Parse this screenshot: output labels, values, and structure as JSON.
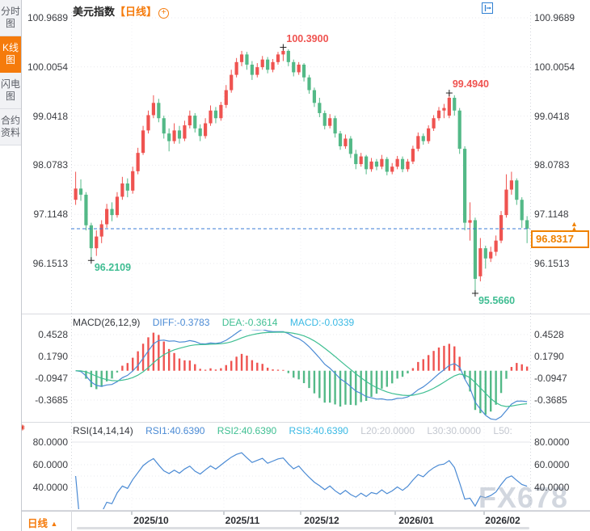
{
  "sidebar": {
    "items": [
      {
        "name": "tab-time-chart",
        "label": "分时图",
        "active": false
      },
      {
        "name": "tab-kline-chart",
        "label": "K线图",
        "active": true
      },
      {
        "name": "tab-lightning-chart",
        "label": "闪电图",
        "active": false
      },
      {
        "name": "tab-contract-info",
        "label": "合约资料",
        "active": false
      }
    ]
  },
  "header": {
    "title": "美元指数",
    "period_tag": "【日线】"
  },
  "toolbar": {
    "icons": [
      "crosshair-pan-icon",
      "zoom-out-icon",
      "zoom-in-icon",
      "reset-view-icon"
    ],
    "active_index": 2
  },
  "chart_data": {
    "type": "candlestick",
    "title": "美元指数 日线",
    "colors": {
      "up": "#ef5350",
      "down": "#53b987",
      "accent": "#f08200",
      "price_line": "#3a7bd5"
    },
    "y_axis_labels": [
      "100.9689",
      "100.0054",
      "99.0418",
      "98.0783",
      "97.1148",
      "96.1513"
    ],
    "x_axis_labels": [
      "2025/10",
      "2025/11",
      "2025/12",
      "2026/01",
      "2026/02"
    ],
    "current_price": "96.8317",
    "annotations": [
      {
        "text": "100.3900",
        "index": 40,
        "price": 100.39,
        "side": "high",
        "color": "up"
      },
      {
        "text": "99.4940",
        "index": 72,
        "price": 99.494,
        "side": "high",
        "color": "up"
      },
      {
        "text": "96.2109",
        "index": 3,
        "price": 96.2109,
        "side": "low",
        "color": "down"
      },
      {
        "text": "95.5660",
        "index": 77,
        "price": 95.566,
        "side": "low",
        "color": "down"
      }
    ],
    "candles": [
      [
        97.4,
        97.95,
        97.3,
        97.62
      ],
      [
        97.62,
        97.8,
        97.38,
        97.5
      ],
      [
        97.5,
        97.55,
        96.8,
        96.9
      ],
      [
        96.9,
        96.95,
        96.2109,
        96.45
      ],
      [
        96.45,
        96.8,
        96.3,
        96.68
      ],
      [
        96.68,
        97.0,
        96.55,
        96.92
      ],
      [
        96.92,
        97.32,
        96.85,
        97.22
      ],
      [
        97.22,
        97.35,
        96.98,
        97.1
      ],
      [
        97.1,
        97.55,
        97.05,
        97.46
      ],
      [
        97.46,
        97.85,
        97.4,
        97.72
      ],
      [
        97.72,
        97.82,
        97.45,
        97.58
      ],
      [
        97.58,
        98.05,
        97.52,
        97.96
      ],
      [
        97.96,
        98.42,
        97.9,
        98.32
      ],
      [
        98.32,
        98.85,
        98.28,
        98.76
      ],
      [
        98.76,
        99.15,
        98.7,
        99.06
      ],
      [
        99.06,
        99.45,
        99.0,
        99.3
      ],
      [
        99.3,
        99.38,
        98.92,
        99.0
      ],
      [
        99.0,
        99.05,
        98.6,
        98.7
      ],
      [
        98.7,
        98.8,
        98.35,
        98.55
      ],
      [
        98.55,
        98.9,
        98.5,
        98.76
      ],
      [
        98.76,
        98.85,
        98.5,
        98.6
      ],
      [
        98.6,
        98.95,
        98.55,
        98.86
      ],
      [
        98.86,
        99.15,
        98.8,
        99.05
      ],
      [
        99.05,
        99.1,
        98.72,
        98.8
      ],
      [
        98.8,
        98.88,
        98.55,
        98.65
      ],
      [
        98.65,
        99.0,
        98.6,
        98.9
      ],
      [
        98.9,
        99.25,
        98.85,
        99.15
      ],
      [
        99.15,
        99.22,
        98.9,
        99.0
      ],
      [
        99.0,
        99.32,
        98.95,
        99.26
      ],
      [
        99.26,
        99.65,
        99.2,
        99.55
      ],
      [
        99.55,
        99.95,
        99.5,
        99.85
      ],
      [
        99.85,
        100.18,
        99.8,
        100.1
      ],
      [
        100.1,
        100.32,
        100.02,
        100.25
      ],
      [
        100.25,
        100.3,
        99.95,
        100.05
      ],
      [
        100.05,
        100.12,
        99.75,
        99.85
      ],
      [
        99.85,
        100.08,
        99.8,
        100.0
      ],
      [
        100.0,
        100.22,
        99.95,
        100.15
      ],
      [
        100.15,
        100.2,
        99.88,
        99.95
      ],
      [
        99.95,
        100.16,
        99.9,
        100.1
      ],
      [
        100.1,
        100.3,
        100.05,
        100.25
      ],
      [
        100.25,
        100.39,
        100.12,
        100.32
      ],
      [
        100.32,
        100.35,
        100.02,
        100.1
      ],
      [
        100.1,
        100.15,
        99.82,
        99.9
      ],
      [
        99.9,
        100.1,
        99.85,
        100.05
      ],
      [
        100.05,
        100.08,
        99.72,
        99.8
      ],
      [
        99.8,
        99.85,
        99.48,
        99.55
      ],
      [
        99.55,
        99.6,
        99.22,
        99.3
      ],
      [
        99.3,
        99.4,
        99.02,
        99.1
      ],
      [
        99.1,
        99.15,
        98.78,
        98.85
      ],
      [
        98.85,
        99.08,
        98.8,
        99.0
      ],
      [
        99.0,
        99.05,
        98.62,
        98.7
      ],
      [
        98.7,
        98.75,
        98.38,
        98.45
      ],
      [
        98.45,
        98.68,
        98.4,
        98.6
      ],
      [
        98.6,
        98.65,
        98.22,
        98.3
      ],
      [
        98.3,
        98.38,
        98.0,
        98.1
      ],
      [
        98.1,
        98.32,
        98.05,
        98.25
      ],
      [
        98.25,
        98.28,
        97.9,
        98.0
      ],
      [
        98.0,
        98.22,
        97.95,
        98.15
      ],
      [
        98.15,
        98.2,
        97.98,
        98.05
      ],
      [
        98.05,
        98.28,
        98.0,
        98.2
      ],
      [
        98.2,
        98.24,
        97.88,
        97.95
      ],
      [
        97.95,
        98.12,
        97.9,
        98.05
      ],
      [
        98.05,
        98.26,
        98.0,
        98.2
      ],
      [
        98.2,
        98.25,
        97.94,
        98.0
      ],
      [
        98.0,
        98.2,
        97.95,
        98.15
      ],
      [
        98.15,
        98.46,
        98.1,
        98.4
      ],
      [
        98.4,
        98.72,
        98.35,
        98.65
      ],
      [
        98.65,
        98.7,
        98.48,
        98.55
      ],
      [
        98.55,
        98.86,
        98.5,
        98.8
      ],
      [
        98.8,
        99.06,
        98.75,
        99.0
      ],
      [
        99.0,
        99.22,
        98.95,
        99.15
      ],
      [
        99.15,
        99.28,
        99.0,
        99.2
      ],
      [
        99.05,
        99.494,
        99.0,
        99.4
      ],
      [
        99.4,
        99.45,
        99.05,
        99.15
      ],
      [
        99.15,
        99.2,
        98.3,
        98.4
      ],
      [
        98.4,
        98.45,
        96.8,
        96.95
      ],
      [
        96.95,
        97.35,
        96.6,
        97.0
      ],
      [
        97.0,
        97.05,
        95.566,
        95.85
      ],
      [
        95.9,
        96.65,
        95.8,
        96.45
      ],
      [
        96.45,
        96.5,
        96.05,
        96.25
      ],
      [
        96.25,
        96.48,
        96.18,
        96.38
      ],
      [
        96.38,
        96.7,
        96.3,
        96.6
      ],
      [
        96.6,
        97.18,
        96.55,
        97.1
      ],
      [
        97.1,
        97.9,
        97.05,
        97.6
      ],
      [
        97.6,
        97.95,
        97.5,
        97.78
      ],
      [
        97.78,
        97.82,
        97.3,
        97.4
      ],
      [
        97.4,
        97.45,
        96.85,
        97.0
      ],
      [
        97.0,
        97.08,
        96.55,
        96.8317
      ]
    ]
  },
  "macd_panel": {
    "title": "MACD(26,12,9)",
    "diff_label": "DIFF:-0.3783",
    "dea_label": "DEA:-0.3614",
    "macd_label": "MACD:-0.0339",
    "y_labels": [
      "0.4528",
      "0.1790",
      "-0.0947",
      "-0.3685"
    ]
  },
  "rsi_panel": {
    "title": "RSI(14,14,14)",
    "rsi1_label": "RSI1:40.6390",
    "rsi2_label": "RSI2:40.6390",
    "rsi3_label": "RSI3:40.6390",
    "l20_label": "L20:20.0000",
    "l30_label": "L30:30.0000",
    "l50_label": "L50:",
    "y_labels": [
      "80.0000",
      "60.0000",
      "40.0000"
    ]
  },
  "bottom_bar": {
    "period": "日线",
    "arrow": "▲"
  },
  "watermark": "FX678"
}
